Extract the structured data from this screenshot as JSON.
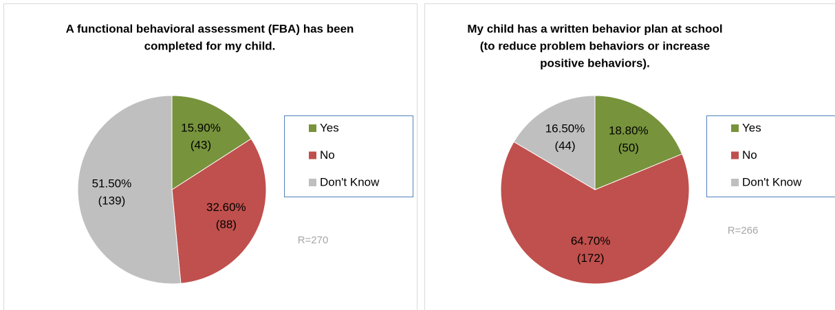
{
  "chart_data": [
    {
      "type": "pie",
      "title": [
        "A functional behavioral assessment (FBA) has been",
        "completed for my child."
      ],
      "categories": [
        "Yes",
        "No",
        "Don't Know"
      ],
      "values": [
        15.9,
        32.6,
        51.5
      ],
      "value_labels": [
        "15.90%",
        "32.60%",
        "51.50%"
      ],
      "count_labels": [
        "(43)",
        "(88)",
        "(139)"
      ],
      "colors": [
        "#77933c",
        "#c0504d",
        "#bfbfbf"
      ],
      "annotation": "R=270",
      "legend": "right"
    },
    {
      "type": "pie",
      "title": [
        "My child has a written behavior plan at school",
        "(to reduce problem behaviors or increase",
        "positive behaviors)."
      ],
      "categories": [
        "Yes",
        "No",
        "Don't Know"
      ],
      "values": [
        18.8,
        64.7,
        16.5
      ],
      "value_labels": [
        "18.80%",
        "64.70%",
        "16.50%"
      ],
      "count_labels": [
        "(50)",
        "(172)",
        "(44)"
      ],
      "colors": [
        "#77933c",
        "#c0504d",
        "#bfbfbf"
      ],
      "annotation": "R=266",
      "legend": "right"
    }
  ]
}
